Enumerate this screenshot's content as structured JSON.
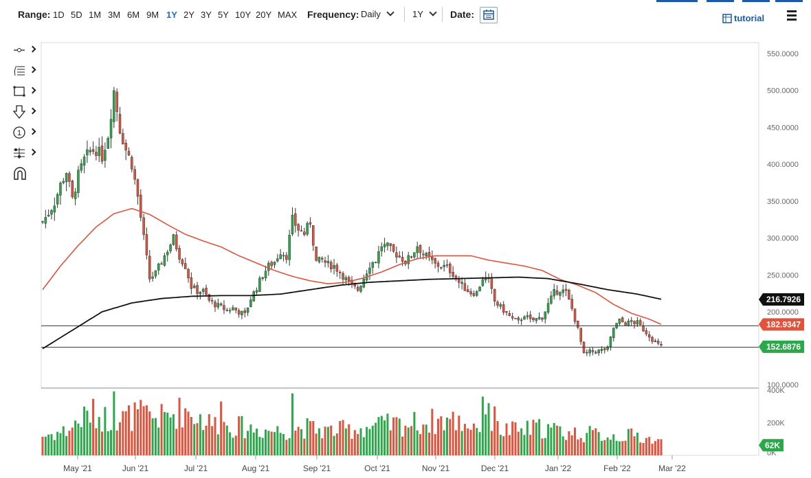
{
  "toolbar": {
    "range_label": "Range:",
    "ranges": [
      "1D",
      "5D",
      "1M",
      "3M",
      "6M",
      "9M",
      "1Y",
      "2Y",
      "3Y",
      "5Y",
      "10Y",
      "20Y",
      "MAX"
    ],
    "active_range": "1Y",
    "frequency_label": "Frequency:",
    "frequency_value": "Daily",
    "period_value": "1Y",
    "date_label": "Date:",
    "tutorial_label": "tutorial",
    "accent_color": "#1a6fcf"
  },
  "drawing_tools": [
    "line-tool-icon",
    "fib-tool-icon",
    "rectangle-tool-icon",
    "arrow-down-tool-icon",
    "number-marker-icon",
    "pattern-tool-icon",
    "magnet-icon"
  ],
  "chart_data": {
    "type": "candlestick",
    "x_ticks": [
      "May '21",
      "Jun '21",
      "Jul '21",
      "Aug '21",
      "Sep '21",
      "Oct '21",
      "Nov '21",
      "Dec '21",
      "Jan '22",
      "Feb '22",
      "Mar '22"
    ],
    "y_ticks": [
      "550.0000",
      "500.0000",
      "450.0000",
      "400.0000",
      "350.0000",
      "300.0000",
      "250.0000",
      "200.0000",
      "100.0000"
    ],
    "ylim": [
      100,
      575
    ],
    "volume_ticks": [
      "400K",
      "200K",
      "0K"
    ],
    "volume_ylim": [
      0,
      400000
    ],
    "up_color": "#2ba84a",
    "down_color": "#e0533d",
    "ma50_color": "#e0533d",
    "ma200_color": "#111111",
    "badges": [
      {
        "label": "216.7926",
        "value": 216.79,
        "color": "#111111"
      },
      {
        "label": "182.9347",
        "value": 182.93,
        "color": "#e0533d"
      },
      {
        "label": "152.6876",
        "value": 152.69,
        "color": "#2ba84a"
      }
    ],
    "volume_badge": {
      "label": "62K",
      "value": 62000,
      "color": "#2ba84a"
    },
    "horizontal_lines": [
      181,
      152
    ],
    "close_path": [
      [
        0,
        322
      ],
      [
        2,
        334
      ],
      [
        4,
        348
      ],
      [
        6,
        372
      ],
      [
        8,
        390
      ],
      [
        10,
        352
      ],
      [
        12,
        385
      ],
      [
        14,
        406
      ],
      [
        16,
        418
      ],
      [
        18,
        420
      ],
      [
        20,
        410
      ],
      [
        22,
        440
      ],
      [
        24,
        500
      ],
      [
        26,
        448
      ],
      [
        28,
        420
      ],
      [
        30,
        400
      ],
      [
        32,
        356
      ],
      [
        34,
        300
      ],
      [
        36,
        245
      ],
      [
        38,
        252
      ],
      [
        40,
        268
      ],
      [
        42,
        284
      ],
      [
        44,
        300
      ],
      [
        46,
        276
      ],
      [
        48,
        262
      ],
      [
        50,
        234
      ],
      [
        52,
        228
      ],
      [
        54,
        228
      ],
      [
        56,
        215
      ],
      [
        58,
        210
      ],
      [
        60,
        206
      ],
      [
        62,
        202
      ],
      [
        64,
        205
      ],
      [
        66,
        200
      ],
      [
        68,
        196
      ],
      [
        70,
        218
      ],
      [
        72,
        233
      ],
      [
        74,
        250
      ],
      [
        76,
        262
      ],
      [
        78,
        268
      ],
      [
        80,
        282
      ],
      [
        82,
        276
      ],
      [
        84,
        325
      ],
      [
        86,
        312
      ],
      [
        88,
        306
      ],
      [
        90,
        322
      ],
      [
        92,
        268
      ],
      [
        94,
        270
      ],
      [
        96,
        264
      ],
      [
        98,
        262
      ],
      [
        100,
        254
      ],
      [
        102,
        244
      ],
      [
        104,
        234
      ],
      [
        106,
        230
      ],
      [
        108,
        246
      ],
      [
        110,
        264
      ],
      [
        112,
        270
      ],
      [
        114,
        290
      ],
      [
        116,
        288
      ],
      [
        118,
        280
      ],
      [
        120,
        276
      ],
      [
        122,
        268
      ],
      [
        124,
        276
      ],
      [
        126,
        290
      ],
      [
        128,
        278
      ],
      [
        130,
        272
      ],
      [
        132,
        264
      ],
      [
        134,
        262
      ],
      [
        136,
        260
      ],
      [
        138,
        252
      ],
      [
        140,
        240
      ],
      [
        142,
        232
      ],
      [
        144,
        226
      ],
      [
        146,
        226
      ],
      [
        148,
        246
      ],
      [
        150,
        242
      ],
      [
        152,
        214
      ],
      [
        154,
        206
      ],
      [
        156,
        198
      ],
      [
        158,
        190
      ],
      [
        160,
        186
      ],
      [
        162,
        196
      ],
      [
        164,
        188
      ],
      [
        166,
        190
      ],
      [
        168,
        193
      ],
      [
        170,
        210
      ],
      [
        172,
        226
      ],
      [
        174,
        230
      ],
      [
        176,
        226
      ],
      [
        178,
        204
      ],
      [
        180,
        176
      ],
      [
        182,
        142
      ],
      [
        184,
        146
      ],
      [
        186,
        146
      ],
      [
        188,
        148
      ],
      [
        190,
        150
      ],
      [
        192,
        178
      ],
      [
        194,
        188
      ],
      [
        196,
        184
      ],
      [
        198,
        186
      ],
      [
        200,
        185
      ],
      [
        202,
        176
      ],
      [
        204,
        168
      ],
      [
        206,
        158
      ],
      [
        208,
        153
      ]
    ],
    "ma50_path": [
      [
        0,
        230
      ],
      [
        6,
        262
      ],
      [
        12,
        290
      ],
      [
        18,
        315
      ],
      [
        24,
        333
      ],
      [
        30,
        340
      ],
      [
        36,
        332
      ],
      [
        42,
        318
      ],
      [
        48,
        305
      ],
      [
        54,
        296
      ],
      [
        60,
        288
      ],
      [
        66,
        276
      ],
      [
        72,
        266
      ],
      [
        78,
        256
      ],
      [
        84,
        248
      ],
      [
        90,
        242
      ],
      [
        96,
        238
      ],
      [
        102,
        240
      ],
      [
        108,
        246
      ],
      [
        114,
        254
      ],
      [
        120,
        264
      ],
      [
        126,
        272
      ],
      [
        132,
        276
      ],
      [
        138,
        276
      ],
      [
        144,
        276
      ],
      [
        150,
        270
      ],
      [
        156,
        266
      ],
      [
        162,
        262
      ],
      [
        168,
        256
      ],
      [
        174,
        244
      ],
      [
        180,
        236
      ],
      [
        186,
        226
      ],
      [
        192,
        210
      ],
      [
        198,
        198
      ],
      [
        204,
        190
      ],
      [
        208,
        183
      ]
    ],
    "ma200_path": [
      [
        0,
        150
      ],
      [
        10,
        175
      ],
      [
        20,
        200
      ],
      [
        30,
        212
      ],
      [
        40,
        218
      ],
      [
        50,
        221
      ],
      [
        60,
        222
      ],
      [
        70,
        222
      ],
      [
        80,
        224
      ],
      [
        90,
        230
      ],
      [
        100,
        236
      ],
      [
        110,
        240
      ],
      [
        120,
        242
      ],
      [
        130,
        244
      ],
      [
        140,
        245
      ],
      [
        150,
        246
      ],
      [
        160,
        247
      ],
      [
        170,
        245
      ],
      [
        180,
        238
      ],
      [
        190,
        230
      ],
      [
        200,
        224
      ],
      [
        208,
        217
      ]
    ],
    "volume_path": [
      [
        0,
        120000
      ],
      [
        8,
        150000
      ],
      [
        16,
        260000
      ],
      [
        24,
        210000
      ],
      [
        32,
        250000
      ],
      [
        40,
        230000
      ],
      [
        48,
        280000
      ],
      [
        56,
        200000
      ],
      [
        64,
        180000
      ],
      [
        72,
        160000
      ],
      [
        80,
        150000
      ],
      [
        88,
        170000
      ],
      [
        96,
        150000
      ],
      [
        104,
        160000
      ],
      [
        112,
        180000
      ],
      [
        120,
        190000
      ],
      [
        128,
        200000
      ],
      [
        136,
        220000
      ],
      [
        144,
        190000
      ],
      [
        150,
        180000
      ],
      [
        152,
        160000
      ],
      [
        160,
        150000
      ],
      [
        168,
        170000
      ],
      [
        176,
        140000
      ],
      [
        184,
        130000
      ],
      [
        192,
        120000
      ],
      [
        200,
        120000
      ],
      [
        208,
        80000
      ]
    ],
    "volume_spikes": [
      [
        24,
        520000
      ],
      [
        60,
        330000
      ],
      [
        84,
        380000
      ],
      [
        148,
        360000
      ],
      [
        150,
        320000
      ],
      [
        152,
        300000
      ]
    ]
  }
}
